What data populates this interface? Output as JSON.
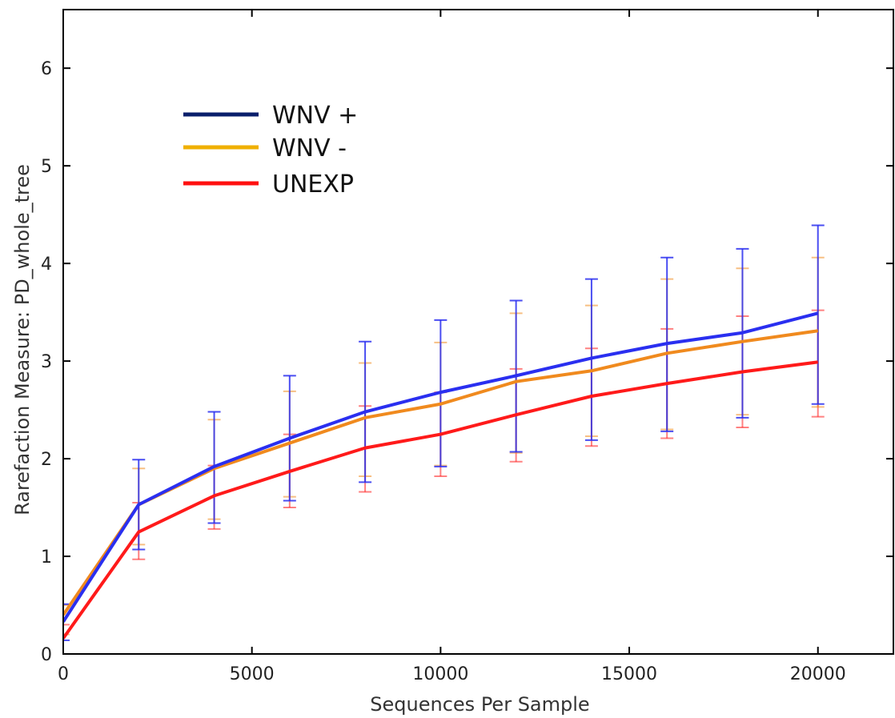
{
  "chart_data": {
    "type": "line",
    "title": "",
    "xlabel": "Sequences Per Sample",
    "ylabel": "Rarefaction Measure: PD_whole_tree",
    "xlim": [
      0,
      22000
    ],
    "ylim": [
      0,
      6.6
    ],
    "x_ticks": [
      0,
      5000,
      10000,
      15000,
      20000
    ],
    "x_tick_labels": [
      "0",
      "5000",
      "10000",
      "15000",
      "20000"
    ],
    "y_ticks": [
      0,
      1,
      2,
      3,
      4,
      5,
      6
    ],
    "y_tick_labels": [
      "0",
      "1",
      "2",
      "3",
      "4",
      "5",
      "6"
    ],
    "grid": false,
    "legend": "upper-left",
    "x": [
      0,
      2000,
      4000,
      6000,
      8000,
      10000,
      12000,
      14000,
      16000,
      18000,
      20000
    ],
    "series": [
      {
        "name": "WNV +",
        "legend_color": "#0a1f6b",
        "line_color": "#2a2ff0",
        "values": [
          0.33,
          1.53,
          1.92,
          2.21,
          2.48,
          2.68,
          2.85,
          3.03,
          3.18,
          3.29,
          3.49
        ],
        "err_low": [
          0.14,
          1.07,
          1.34,
          1.57,
          1.76,
          1.92,
          2.07,
          2.19,
          2.28,
          2.42,
          2.56
        ],
        "err_high": [
          0.51,
          1.99,
          2.48,
          2.85,
          3.2,
          3.42,
          3.62,
          3.84,
          4.06,
          4.15,
          4.39
        ]
      },
      {
        "name": "WNV -",
        "legend_color": "#f0b000",
        "line_color": "#f08a1e",
        "values": [
          0.4,
          1.53,
          1.9,
          2.16,
          2.42,
          2.56,
          2.79,
          2.9,
          3.08,
          3.2,
          3.31
        ],
        "err_low": [
          0.2,
          1.12,
          1.38,
          1.61,
          1.82,
          1.93,
          2.06,
          2.23,
          2.3,
          2.45,
          2.53
        ],
        "err_high": [
          0.5,
          1.9,
          2.4,
          2.69,
          2.98,
          3.19,
          3.49,
          3.57,
          3.84,
          3.95,
          4.06
        ]
      },
      {
        "name": "UNEXP",
        "legend_color": "#ff1010",
        "line_color": "#ff1a1a",
        "values": [
          0.16,
          1.25,
          1.62,
          1.87,
          2.11,
          2.25,
          2.45,
          2.64,
          2.77,
          2.89,
          2.99
        ],
        "err_low": [
          0.0,
          0.97,
          1.28,
          1.5,
          1.66,
          1.82,
          1.97,
          2.13,
          2.21,
          2.32,
          2.43
        ],
        "err_high": [
          0.3,
          1.55,
          1.93,
          2.25,
          2.54,
          2.68,
          2.92,
          3.13,
          3.33,
          3.46,
          3.52
        ]
      }
    ]
  }
}
